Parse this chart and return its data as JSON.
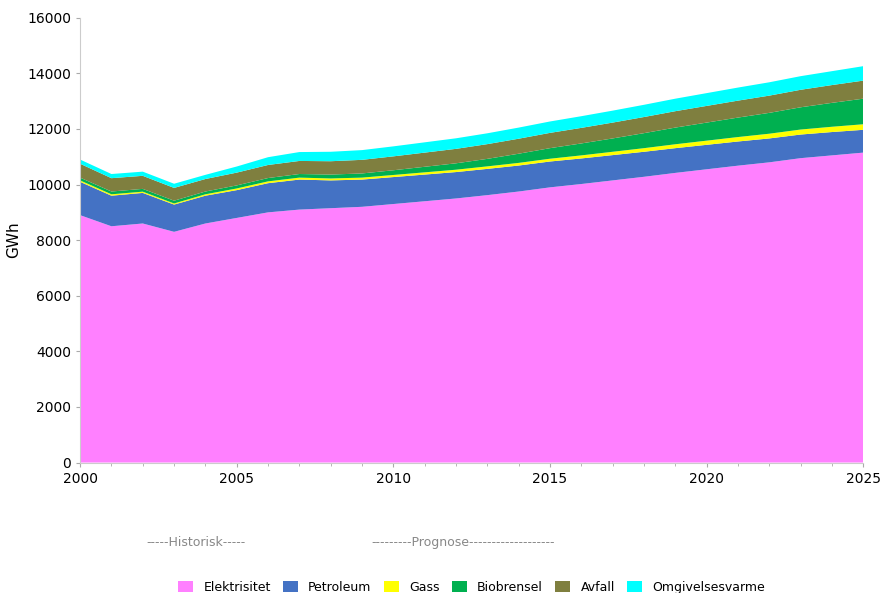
{
  "years": [
    2000,
    2001,
    2002,
    2003,
    2004,
    2005,
    2006,
    2007,
    2008,
    2009,
    2010,
    2011,
    2012,
    2013,
    2014,
    2015,
    2016,
    2017,
    2018,
    2019,
    2020,
    2021,
    2022,
    2023,
    2024,
    2025
  ],
  "elektrisitet": [
    8900,
    8500,
    8600,
    8300,
    8600,
    8800,
    9000,
    9100,
    9150,
    9200,
    9300,
    9400,
    9500,
    9620,
    9750,
    9900,
    10020,
    10150,
    10280,
    10420,
    10550,
    10680,
    10800,
    10950,
    11050,
    11150
  ],
  "petroleum": [
    1200,
    1100,
    1100,
    980,
    1000,
    1000,
    1050,
    1080,
    1000,
    980,
    970,
    960,
    950,
    945,
    935,
    930,
    920,
    910,
    900,
    890,
    880,
    870,
    860,
    850,
    840,
    820
  ],
  "gass": [
    50,
    50,
    45,
    40,
    50,
    60,
    65,
    70,
    70,
    70,
    75,
    80,
    85,
    90,
    95,
    100,
    110,
    120,
    130,
    140,
    150,
    160,
    170,
    180,
    190,
    200
  ],
  "biobrensel": [
    100,
    100,
    100,
    100,
    100,
    110,
    120,
    130,
    140,
    150,
    170,
    200,
    230,
    270,
    330,
    380,
    430,
    480,
    540,
    600,
    650,
    700,
    750,
    800,
    860,
    920
  ],
  "avfall": [
    500,
    480,
    470,
    460,
    450,
    460,
    470,
    470,
    480,
    490,
    500,
    510,
    520,
    530,
    540,
    550,
    560,
    570,
    580,
    590,
    600,
    610,
    620,
    630,
    640,
    650
  ],
  "omgivelsesvarme": [
    150,
    150,
    150,
    150,
    150,
    220,
    280,
    320,
    340,
    350,
    360,
    370,
    380,
    390,
    400,
    410,
    420,
    430,
    440,
    450,
    460,
    470,
    480,
    490,
    500,
    520
  ],
  "colors": {
    "elektrisitet": "#FF80FF",
    "petroleum": "#4472C4",
    "gass": "#FFFF00",
    "biobrensel": "#00B050",
    "avfall": "#7F7F3F",
    "omgivelsesvarme": "#00FFFF"
  },
  "ylabel": "GWh",
  "ylim": [
    0,
    16000
  ],
  "xlim": [
    2000,
    2025
  ],
  "yticks": [
    0,
    2000,
    4000,
    6000,
    8000,
    10000,
    12000,
    14000,
    16000
  ],
  "xticks": [
    2000,
    2005,
    2010,
    2015,
    2020,
    2025
  ],
  "legend_labels": [
    "Elektrisitet",
    "Petroleum",
    "Gass",
    "Biobrensel",
    "Avfall",
    "Omgivelsesvarme"
  ],
  "background_color": "#FFFFFF"
}
